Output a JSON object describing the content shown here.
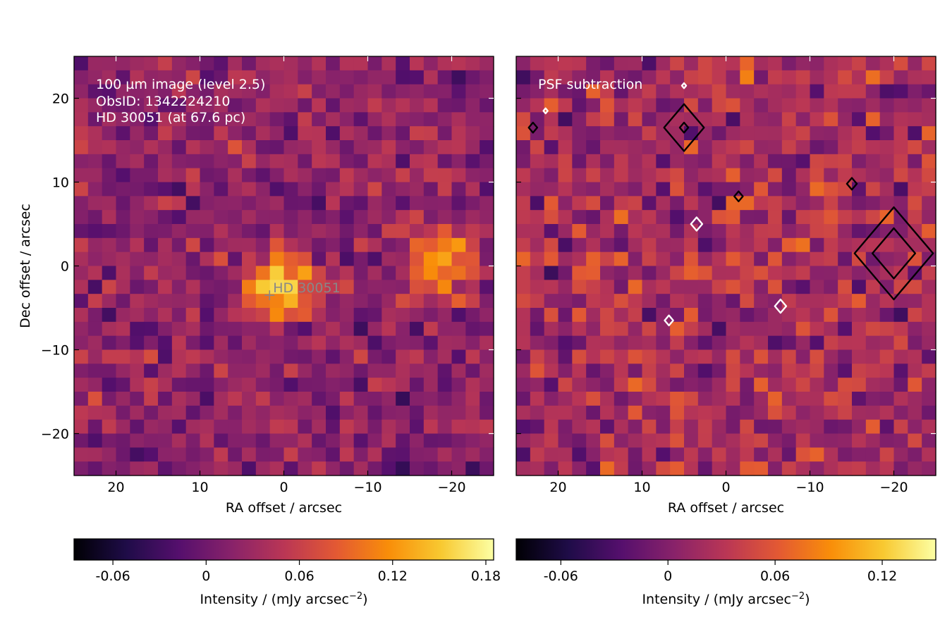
{
  "chart_data": [
    {
      "type": "heatmap",
      "panel": "left",
      "annotation_lines": [
        "100 µm image (level 2.5)",
        "ObsID: 1342224210",
        "HD 30051 (at 67.6 pc)"
      ],
      "xlabel": "RA offset / arcsec",
      "ylabel": "Dec offset / arcsec",
      "xlim": [
        25,
        -25
      ],
      "ylim": [
        -25,
        25
      ],
      "xticks": [
        20,
        10,
        0,
        -10,
        -20
      ],
      "xtick_labels": [
        "20",
        "10",
        "0",
        "−10",
        "−20"
      ],
      "yticks": [
        20,
        10,
        0,
        -10,
        -20
      ],
      "ytick_labels": [
        "20",
        "10",
        "0",
        "−10",
        "−20"
      ],
      "grid": false,
      "colormap": "inferno",
      "vrange": [
        -0.085,
        0.185
      ],
      "target_marker": {
        "label": "HD 30051",
        "ra": 1.7,
        "dec": -3.5,
        "color": "#888888"
      },
      "colorbar": {
        "label": "Intensity / (mJy arcsec",
        "label_exponent": "−2",
        "label_close": ")",
        "ticks": [
          -0.06,
          0,
          0.06,
          0.12,
          0.18
        ],
        "tick_labels": [
          "-0.06",
          "0",
          "0.06",
          "0.12",
          "0.18"
        ],
        "range": [
          -0.085,
          0.185
        ]
      },
      "features": [
        {
          "desc": "bright source",
          "ra": 0.5,
          "dec": -2.5,
          "value": 0.17
        },
        {
          "desc": "bright blob",
          "ra": -19,
          "dec": 1.0,
          "value": 0.14
        }
      ]
    },
    {
      "type": "heatmap",
      "panel": "right",
      "annotation_lines": [
        "PSF subtraction"
      ],
      "xlabel": "RA offset / arcsec",
      "xlim": [
        25,
        -25
      ],
      "ylim": [
        -25,
        25
      ],
      "xticks": [
        20,
        10,
        0,
        -10,
        -20
      ],
      "xtick_labels": [
        "20",
        "10",
        "0",
        "−10",
        "−20"
      ],
      "yticks": [
        20,
        10,
        0,
        -10,
        -20
      ],
      "grid": false,
      "colormap": "inferno",
      "vrange": [
        -0.085,
        0.15
      ],
      "contours": [
        {
          "ra": -20,
          "dec": 1.5,
          "size": 5.5,
          "color": "#000000"
        },
        {
          "ra": -20,
          "dec": 1.5,
          "size": 3.0,
          "color": "#000000"
        },
        {
          "ra": 5,
          "dec": 16.5,
          "size": 2.8,
          "color": "#000000"
        },
        {
          "ra": 5,
          "dec": 16.5,
          "size": 0.6,
          "color": "#000000"
        },
        {
          "ra": 23,
          "dec": 16.5,
          "size": 0.6,
          "color": "#000000"
        },
        {
          "ra": -15,
          "dec": 9.8,
          "size": 0.7,
          "color": "#000000"
        },
        {
          "ra": -1.5,
          "dec": 8.3,
          "size": 0.6,
          "color": "#000000"
        },
        {
          "ra": 3.5,
          "dec": 5.0,
          "size": 0.8,
          "color": "#ffffff"
        },
        {
          "ra": -6.5,
          "dec": -4.8,
          "size": 0.8,
          "color": "#ffffff"
        },
        {
          "ra": 6.8,
          "dec": -6.5,
          "size": 0.6,
          "color": "#ffffff"
        },
        {
          "ra": 5,
          "dec": 21.5,
          "size": 0.3,
          "color": "#ffffff"
        },
        {
          "ra": 21.5,
          "dec": 18.5,
          "size": 0.3,
          "color": "#ffffff"
        }
      ],
      "colorbar": {
        "label": "Intensity / (mJy arcsec",
        "label_exponent": "−2",
        "label_close": ")",
        "ticks": [
          -0.06,
          0,
          0.06,
          0.12
        ],
        "tick_labels": [
          "-0.06",
          "0",
          "0.06",
          "0.12"
        ],
        "range": [
          -0.085,
          0.15
        ]
      }
    }
  ]
}
